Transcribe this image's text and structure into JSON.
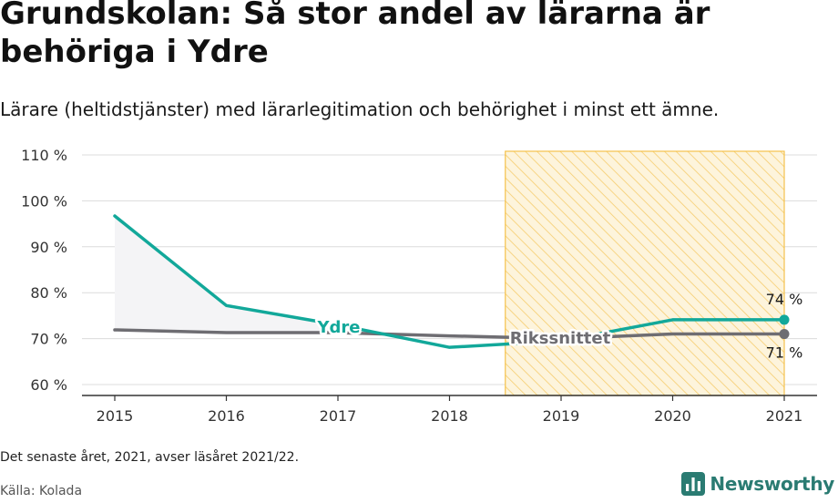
{
  "header": {
    "title": "Grundskolan: Så stor andel av lärarna är behöriga i Ydre",
    "subtitle": "Lärare (heltidstjänster) med lärarlegitimation och behörighet i minst ett ämne."
  },
  "footer": {
    "note": "Det senaste året, 2021, avser läsåret 2021/22.",
    "source": "Källa: Kolada",
    "brand": "Newsworthy"
  },
  "colors": {
    "ydre": "#12a89a",
    "riks": "#6e6d72",
    "highlight_stroke": "#f5c24c",
    "highlight_fill": "#fdf2d4",
    "area_fill": "#f4f4f6"
  },
  "chart_data": {
    "type": "line",
    "x": [
      2015,
      2016,
      2017,
      2018,
      2019,
      2020,
      2021
    ],
    "ylim": [
      57,
      110
    ],
    "y_ticks": [
      60,
      70,
      80,
      90,
      100,
      110
    ],
    "y_tick_labels": [
      "60 %",
      "70 %",
      "80 %",
      "90 %",
      "100 %",
      "110 %"
    ],
    "x_tick_labels": [
      "2015",
      "2016",
      "2017",
      "2018",
      "2019",
      "2020",
      "2021"
    ],
    "grid": true,
    "highlight_range": [
      2018.5,
      2021
    ],
    "series": [
      {
        "name": "Ydre",
        "key": "ydre",
        "values": [
          96.7,
          77.2,
          73.0,
          68.1,
          69.5,
          74.1,
          74.1
        ],
        "end_label": "74 %"
      },
      {
        "name": "Rikssnittet",
        "key": "riks",
        "values": [
          71.9,
          71.3,
          71.3,
          70.6,
          70.0,
          71.0,
          71.0
        ],
        "end_label": "71 %"
      }
    ]
  }
}
